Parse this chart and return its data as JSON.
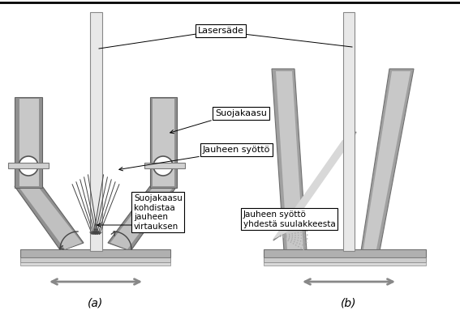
{
  "label_a": "(a)",
  "label_b": "(b)",
  "lasersade": "Lasersäde",
  "suojakaasu": "Suojakaasu",
  "jauheen_syotto": "Jauheen syöttö",
  "suojakaasu_kohdistaa": "Suojakaasu\nkohdistaa\njauheen\nvirtauksen",
  "jauheen_syotto_yhdesta": "Jauheen syöttö\nyhdestä suulakkeesta",
  "bg_color": "#ffffff"
}
